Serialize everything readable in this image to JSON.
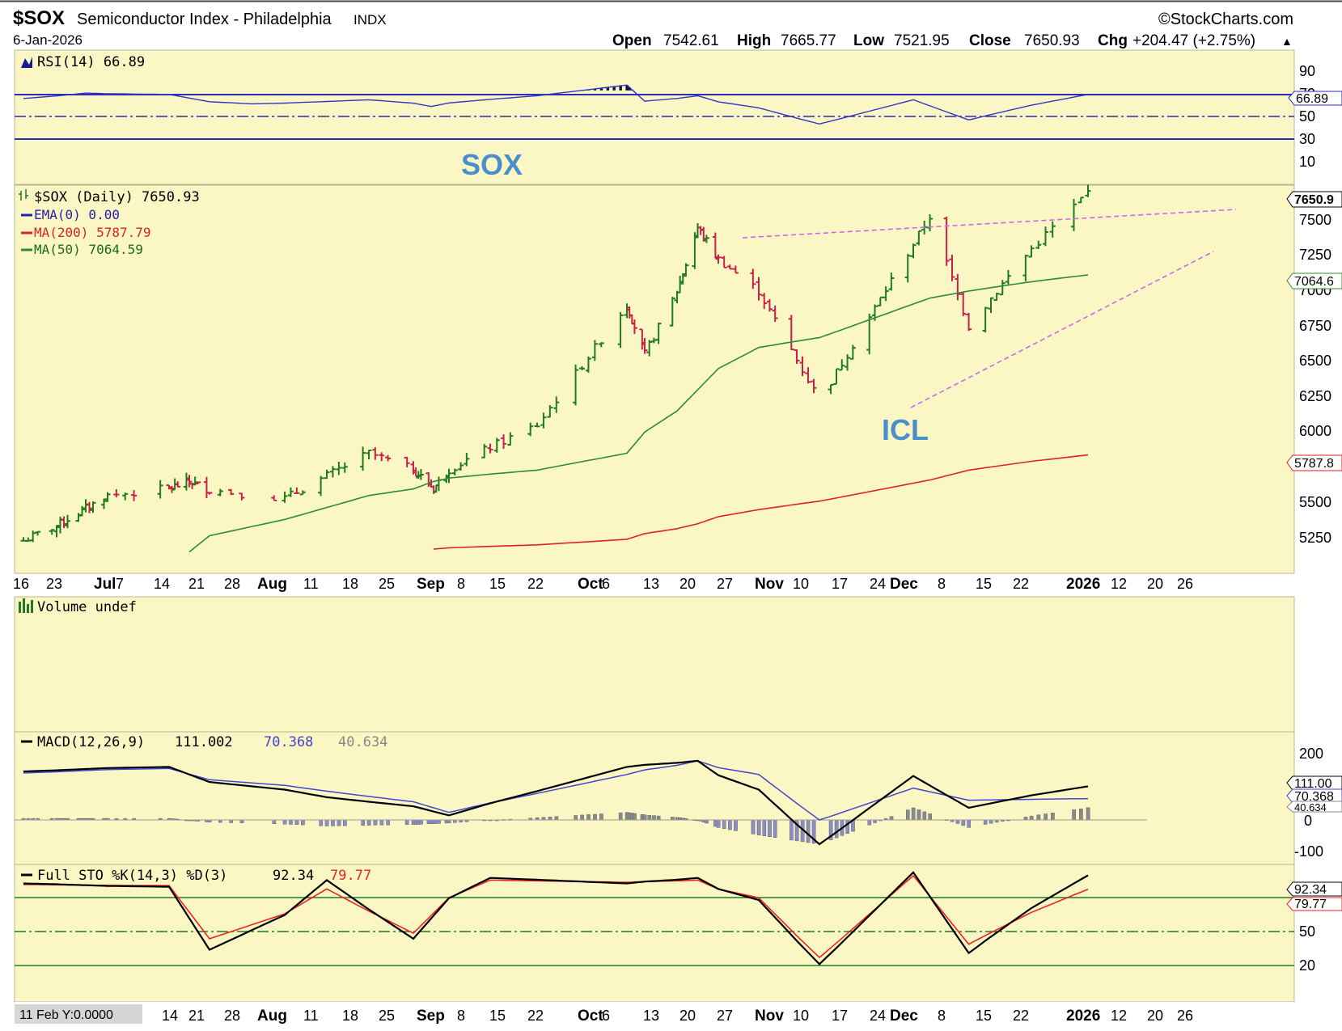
{
  "header": {
    "ticker": "$SOX",
    "name": "Semiconductor Index - Philadelphia",
    "exchange": "INDX",
    "date": "6-Jan-2026",
    "brand": "©StockCharts.com",
    "open_label": "Open",
    "open": "7542.61",
    "high_label": "High",
    "high": "7665.77",
    "low_label": "Low",
    "low": "7521.95",
    "close_label": "Close",
    "close": "7650.93",
    "chg_label": "Chg",
    "chg": "+204.47 (+2.75%)",
    "chg_arrow": "▲",
    "up_color": "#1e7b1e"
  },
  "rsi_panel": {
    "legend": "RSI(14) 66.89",
    "ticks": [
      "90",
      "70",
      "50",
      "30",
      "10"
    ],
    "current_tag": "66.89"
  },
  "annotations": {
    "sox": "SOX",
    "icl": "ICL"
  },
  "price_panel": {
    "legend_main": "$SOX (Daily) 7650.93",
    "legend_ema": "EMA(0) 0.00",
    "legend_ma200": "MA(200) 5787.79",
    "legend_ma50": "MA(50) 7064.59",
    "ticks": [
      "7500",
      "7250",
      "7000",
      "6750",
      "6500",
      "6250",
      "6000",
      "5500",
      "5250"
    ],
    "tag_close": "7650.9",
    "tag_ma50": "7064.6",
    "tag_ma200": "5787.8",
    "x_labels": [
      {
        "t": "16",
        "b": false
      },
      {
        "t": "23",
        "b": false
      },
      {
        "t": "Jul",
        "b": true
      },
      {
        "t": "7",
        "b": false
      },
      {
        "t": "14",
        "b": false
      },
      {
        "t": "21",
        "b": false
      },
      {
        "t": "28",
        "b": false
      },
      {
        "t": "Aug",
        "b": true
      },
      {
        "t": "11",
        "b": false
      },
      {
        "t": "18",
        "b": false
      },
      {
        "t": "25",
        "b": false
      },
      {
        "t": "Sep",
        "b": true
      },
      {
        "t": "8",
        "b": false
      },
      {
        "t": "15",
        "b": false
      },
      {
        "t": "22",
        "b": false
      },
      {
        "t": "Oct",
        "b": true
      },
      {
        "t": "6",
        "b": false
      },
      {
        "t": "13",
        "b": false
      },
      {
        "t": "20",
        "b": false
      },
      {
        "t": "27",
        "b": false
      },
      {
        "t": "Nov",
        "b": true
      },
      {
        "t": "10",
        "b": false
      },
      {
        "t": "17",
        "b": false
      },
      {
        "t": "24",
        "b": false
      },
      {
        "t": "Dec",
        "b": true
      },
      {
        "t": "8",
        "b": false
      },
      {
        "t": "15",
        "b": false
      },
      {
        "t": "22",
        "b": false
      },
      {
        "t": "2026",
        "b": true
      },
      {
        "t": "12",
        "b": false
      },
      {
        "t": "20",
        "b": false
      },
      {
        "t": "26",
        "b": false
      }
    ]
  },
  "volume_panel": {
    "legend": "Volume undef"
  },
  "macd_panel": {
    "legend_label": "MACD(12,26,9)",
    "macd": "111.002",
    "signal": "70.368",
    "hist": "40.634",
    "ticks": [
      "200",
      "0",
      "-100"
    ],
    "tag_macd": "111.00",
    "tag_signal": "70.368",
    "tag_hist": "40.634"
  },
  "sto_panel": {
    "legend_label": "Full STO %K(14,3) %D(3)",
    "k": "92.34",
    "d": "79.77",
    "ticks": [
      "50",
      "20"
    ],
    "tag_k": "92.34",
    "tag_d": "79.77",
    "x_labels": [
      {
        "t": "14",
        "b": false
      },
      {
        "t": "21",
        "b": false
      },
      {
        "t": "28",
        "b": false
      },
      {
        "t": "Aug",
        "b": true
      },
      {
        "t": "11",
        "b": false
      },
      {
        "t": "18",
        "b": false
      },
      {
        "t": "25",
        "b": false
      },
      {
        "t": "Sep",
        "b": true
      },
      {
        "t": "8",
        "b": false
      },
      {
        "t": "15",
        "b": false
      },
      {
        "t": "22",
        "b": false
      },
      {
        "t": "Oct",
        "b": true
      },
      {
        "t": "6",
        "b": false
      },
      {
        "t": "13",
        "b": false
      },
      {
        "t": "20",
        "b": false
      },
      {
        "t": "27",
        "b": false
      },
      {
        "t": "Nov",
        "b": true
      },
      {
        "t": "10",
        "b": false
      },
      {
        "t": "17",
        "b": false
      },
      {
        "t": "24",
        "b": false
      },
      {
        "t": "Dec",
        "b": true
      },
      {
        "t": "8",
        "b": false
      },
      {
        "t": "15",
        "b": false
      },
      {
        "t": "22",
        "b": false
      },
      {
        "t": "2026",
        "b": true
      },
      {
        "t": "12",
        "b": false
      },
      {
        "t": "20",
        "b": false
      },
      {
        "t": "26",
        "b": false
      }
    ],
    "footer_label": "11 Feb Y:0.0000"
  },
  "colors": {
    "panel_bg": "#faf7c5",
    "up": "#1e7b1e",
    "down": "#cc1f4a",
    "ma50": "#2e8b2e",
    "ma200": "#dd2222",
    "rsi": "#3333cc",
    "trend": "#cc66ee",
    "macd": "#000000",
    "signal": "#4444cc",
    "hist": "#8c8cc8",
    "sto_k": "#000000",
    "sto_d": "#ee2222",
    "annotation": "#4a8fc9"
  },
  "chart_data": [
    {
      "type": "line",
      "title": "RSI(14) 66.89",
      "ylim": [
        0,
        100
      ],
      "reference_lines": [
        70,
        50,
        30
      ],
      "x": [
        "Jun 16",
        "Jul 1",
        "Jul 14",
        "Aug 1",
        "Aug 18",
        "Sep 1",
        "Sep 22",
        "Oct 6",
        "Oct 13",
        "Oct 27",
        "Nov 10",
        "Nov 21",
        "Dec 8",
        "Dec 18",
        "Jan 6"
      ],
      "series": [
        {
          "name": "RSI(14)",
          "values": [
            64,
            68,
            67,
            60,
            63,
            58,
            66,
            74,
            62,
            66,
            57,
            45,
            63,
            48,
            67
          ]
        }
      ]
    },
    {
      "type": "line",
      "title": "$SOX (Daily) 7650.93",
      "ylim": [
        5100,
        7800
      ],
      "x": [
        "Jun 16",
        "Jul 7",
        "Jul 21",
        "Aug 4",
        "Aug 18",
        "Sep 2",
        "Sep 22",
        "Oct 6",
        "Oct 13",
        "Oct 27",
        "Nov 10",
        "Nov 21",
        "Dec 11",
        "Dec 18",
        "Jan 6"
      ],
      "series": [
        {
          "name": "$SOX",
          "values": [
            5180,
            5500,
            5600,
            5480,
            5800,
            5550,
            6000,
            6850,
            6500,
            7400,
            6950,
            6180,
            7480,
            6700,
            7650.93
          ]
        },
        {
          "name": "MA(50)",
          "values": [
            null,
            null,
            5100,
            5330,
            5500,
            5600,
            5680,
            5800,
            5950,
            6250,
            6550,
            6620,
            6900,
            6950,
            7064.59
          ]
        },
        {
          "name": "MA(200)",
          "values": [
            null,
            null,
            null,
            null,
            null,
            5120,
            5150,
            5190,
            5230,
            5300,
            5400,
            5460,
            5610,
            5680,
            5787.79
          ]
        }
      ]
    },
    {
      "type": "line",
      "title": "MACD(12,26,9) 111.002, 70.368, 40.634",
      "ylim": [
        -120,
        260
      ],
      "x": [
        "Jun 16",
        "Jul 14",
        "Aug 11",
        "Sep 8",
        "Oct 6",
        "Oct 27",
        "Nov 10",
        "Nov 21",
        "Dec 8",
        "Dec 18",
        "Jan 6"
      ],
      "series": [
        {
          "name": "MACD",
          "values": [
            160,
            175,
            75,
            15,
            175,
            195,
            100,
            -80,
            145,
            40,
            111.002
          ]
        },
        {
          "name": "Signal",
          "values": [
            155,
            170,
            95,
            25,
            150,
            195,
            150,
            0,
            105,
            65,
            70.368
          ]
        },
        {
          "name": "Histogram",
          "values": [
            5,
            5,
            -20,
            -10,
            25,
            0,
            -50,
            -80,
            40,
            -25,
            40.634
          ]
        }
      ]
    },
    {
      "type": "line",
      "title": "Full STO %K(14,3) %D(3) 92.34, 79.77",
      "ylim": [
        0,
        100
      ],
      "reference_lines": [
        80,
        50,
        20
      ],
      "x": [
        "Jun 16",
        "Jul 14",
        "Jul 28",
        "Aug 11",
        "Aug 25",
        "Sep 15",
        "Oct 6",
        "Oct 27",
        "Nov 10",
        "Nov 21",
        "Dec 8",
        "Dec 18",
        "Jan 6"
      ],
      "series": [
        {
          "name": "%K",
          "values": [
            85,
            82,
            25,
            88,
            35,
            90,
            85,
            90,
            70,
            12,
            95,
            22,
            92.34
          ]
        },
        {
          "name": "%D",
          "values": [
            84,
            83,
            35,
            80,
            40,
            88,
            86,
            88,
            72,
            18,
            92,
            30,
            79.77
          ]
        }
      ]
    }
  ]
}
